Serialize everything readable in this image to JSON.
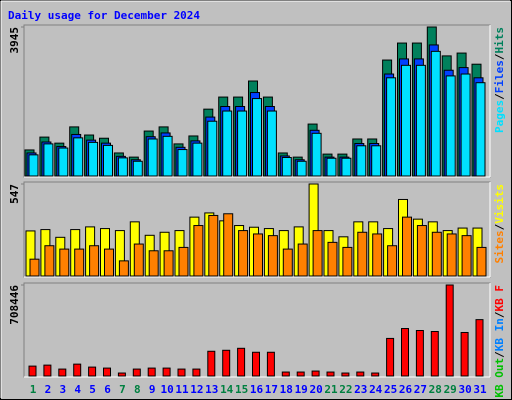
{
  "title": "Daily usage for December 2024",
  "chart_data": [
    {
      "type": "bar",
      "categories": [
        "1",
        "2",
        "3",
        "4",
        "5",
        "6",
        "7",
        "8",
        "9",
        "10",
        "11",
        "12",
        "13",
        "14",
        "15",
        "16",
        "17",
        "18",
        "19",
        "20",
        "21",
        "22",
        "23",
        "24",
        "25",
        "26",
        "27",
        "28",
        "29",
        "30",
        "31"
      ],
      "category_colors": [
        "#008040",
        "#0000ff",
        "#0000ff",
        "#0000ff",
        "#0000ff",
        "#0000ff",
        "#008040",
        "#008040",
        "#0000ff",
        "#0000ff",
        "#0000ff",
        "#0000ff",
        "#0000ff",
        "#008040",
        "#008040",
        "#0000ff",
        "#0000ff",
        "#0000ff",
        "#0000ff",
        "#0000ff",
        "#008040",
        "#008040",
        "#0000ff",
        "#0000ff",
        "#0000ff",
        "#0000ff",
        "#0000ff",
        "#008040",
        "#008040",
        "#0000ff",
        "#0000ff"
      ],
      "ylim": [
        0,
        3945
      ],
      "yticks": [
        3945
      ],
      "legend_separator": "/",
      "series": [
        {
          "name": "Hits",
          "color": "#00805c",
          "values": [
            690,
            1030,
            870,
            1300,
            1085,
            1000,
            610,
            500,
            1190,
            1300,
            850,
            1060,
            1770,
            2090,
            2090,
            2515,
            2090,
            610,
            500,
            1375,
            580,
            580,
            980,
            980,
            3070,
            3520,
            3520,
            3945,
            3180,
            3255,
            2960
          ]
        },
        {
          "name": "Files",
          "color": "#0040ff",
          "values": [
            610,
            900,
            780,
            1100,
            950,
            870,
            520,
            430,
            1040,
            1140,
            760,
            930,
            1560,
            1840,
            1840,
            2210,
            1840,
            530,
            430,
            1210,
            500,
            500,
            860,
            860,
            2700,
            3100,
            3100,
            3470,
            2800,
            2870,
            2600
          ]
        },
        {
          "name": "Pages",
          "color": "#00e0ff",
          "values": [
            560,
            850,
            740,
            1010,
            890,
            810,
            480,
            390,
            980,
            1050,
            700,
            870,
            1450,
            1720,
            1720,
            2050,
            1720,
            490,
            390,
            1130,
            470,
            470,
            800,
            800,
            2600,
            2930,
            2930,
            3300,
            2650,
            2700,
            2470
          ]
        }
      ]
    },
    {
      "type": "bar",
      "categories": [
        "1",
        "2",
        "3",
        "4",
        "5",
        "6",
        "7",
        "8",
        "9",
        "10",
        "11",
        "12",
        "13",
        "14",
        "15",
        "16",
        "17",
        "18",
        "19",
        "20",
        "21",
        "22",
        "23",
        "24",
        "25",
        "26",
        "27",
        "28",
        "29",
        "30",
        "31"
      ],
      "ylim": [
        0,
        547
      ],
      "yticks": [
        547
      ],
      "legend_separator": "/",
      "series": [
        {
          "name": "Visits",
          "color": "#ffff00",
          "values": [
            268,
            276,
            230,
            276,
            292,
            282,
            270,
            322,
            242,
            260,
            270,
            350,
            375,
            328,
            300,
            290,
            282,
            270,
            292,
            547,
            270,
            233,
            322,
            322,
            282,
            455,
            338,
            322,
            270,
            285,
            285
          ]
        },
        {
          "name": "Sites",
          "color": "#ff8000",
          "values": [
            100,
            180,
            160,
            160,
            180,
            160,
            90,
            190,
            150,
            150,
            170,
            300,
            360,
            370,
            270,
            250,
            240,
            160,
            190,
            270,
            200,
            170,
            260,
            250,
            180,
            350,
            300,
            260,
            250,
            240,
            170
          ]
        }
      ]
    },
    {
      "type": "bar",
      "categories": [
        "1",
        "2",
        "3",
        "4",
        "5",
        "6",
        "7",
        "8",
        "9",
        "10",
        "11",
        "12",
        "13",
        "14",
        "15",
        "16",
        "17",
        "18",
        "19",
        "20",
        "21",
        "22",
        "23",
        "24",
        "25",
        "26",
        "27",
        "28",
        "29",
        "30",
        "31"
      ],
      "ylim": [
        0,
        708446
      ],
      "yticks": [
        708446
      ],
      "legend_separator": "/",
      "series": [
        {
          "name": "KB F",
          "color": "#ff0000",
          "values": [
            77000,
            84700,
            53900,
            92400,
            69300,
            61600,
            23100,
            53900,
            61600,
            61600,
            53900,
            53900,
            192500,
            200200,
            215600,
            184800,
            184800,
            30800,
            30800,
            38500,
            30800,
            23100,
            30800,
            23100,
            292600,
            369600,
            354200,
            346500,
            708446,
            338800,
            438900
          ]
        },
        {
          "name": "KB In",
          "color": "#0080ff",
          "values": [
            0,
            0,
            0,
            0,
            0,
            0,
            0,
            0,
            0,
            0,
            0,
            0,
            0,
            0,
            0,
            0,
            0,
            0,
            0,
            0,
            0,
            0,
            0,
            0,
            0,
            0,
            0,
            0,
            0,
            0,
            0
          ]
        },
        {
          "name": "KB Out",
          "color": "#00c000",
          "values": [
            0,
            0,
            0,
            0,
            0,
            0,
            0,
            0,
            0,
            0,
            0,
            0,
            0,
            0,
            0,
            0,
            0,
            0,
            0,
            0,
            0,
            0,
            0,
            0,
            0,
            0,
            0,
            0,
            0,
            0,
            0
          ]
        }
      ]
    }
  ]
}
